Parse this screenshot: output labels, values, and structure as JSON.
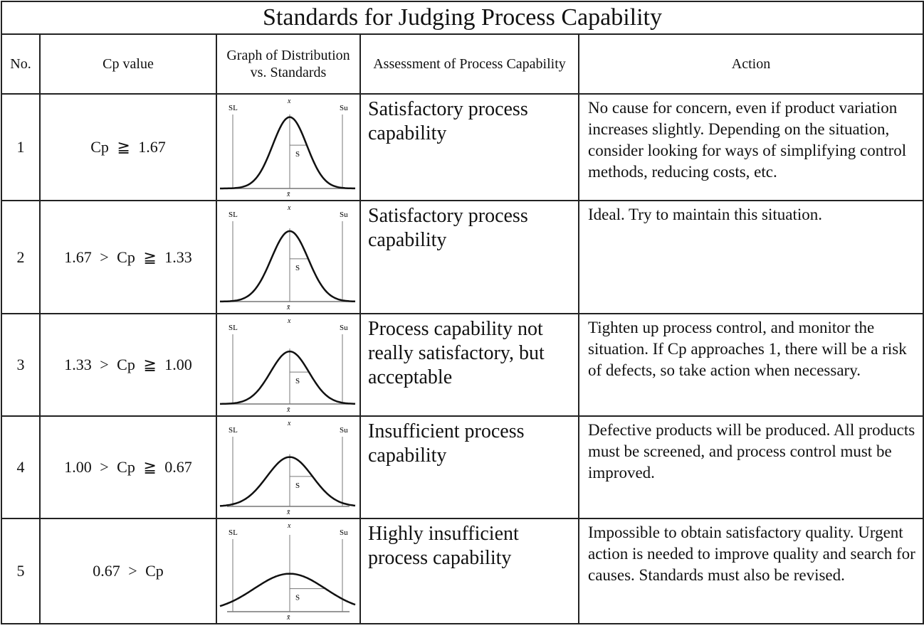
{
  "title": "Standards for Judging Process Capability",
  "headers": {
    "no": "No.",
    "cp": "Cp value",
    "graph": "Graph of Distribution vs. Standards",
    "assessment": "Assessment of Process Capability",
    "action": "Action"
  },
  "graph_labels": {
    "lower": "SL",
    "upper": "Su",
    "sigma": "S",
    "mean": "x̄",
    "mean_top": "x"
  },
  "rows": [
    {
      "no": "1",
      "cp": "Cp ≧ 1.67",
      "assessment": "Satisfactory process capability",
      "action": "No cause for concern, even if product variation increases slightly. Depending on the situation, consider looking for ways of simplifying control methods, reducing costs, etc."
    },
    {
      "no": "2",
      "cp": "1.67 > Cp ≧ 1.33",
      "assessment": "Satisfactory process capability",
      "action": "Ideal. Try to maintain this situation."
    },
    {
      "no": "3",
      "cp": "1.33 > Cp ≧ 1.00",
      "assessment": "Process capability not really satisfactory, but acceptable",
      "action": "Tighten up process control, and monitor the situation. If Cp approaches 1, there will be a risk of defects, so take action when necessary."
    },
    {
      "no": "4",
      "cp": "1.00 > Cp ≧ 0.67",
      "assessment": "Insufficient process capability",
      "action": "Defective products will be produced. All products must be screened, and process control must be improved."
    },
    {
      "no": "5",
      "cp": "0.67 > Cp",
      "assessment": "Highly insufficient process capability",
      "action": "Impossible to obtain satisfactory quality. Urgent action is needed to improve quality and search for causes. Standards must also be revised."
    }
  ]
}
